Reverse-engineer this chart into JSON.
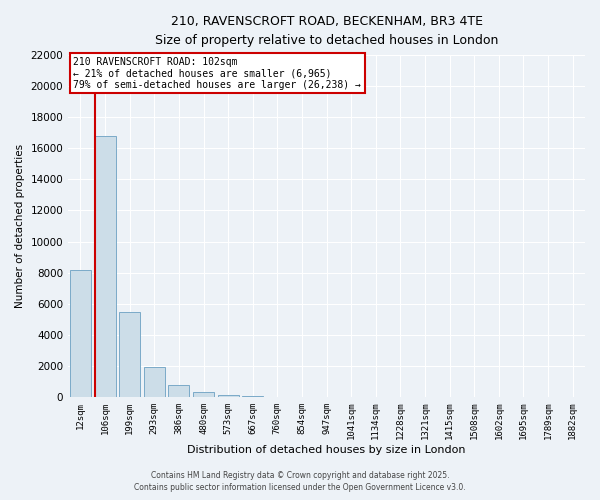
{
  "title": "210, RAVENSCROFT ROAD, BECKENHAM, BR3 4TE",
  "subtitle": "Size of property relative to detached houses in London",
  "xlabel": "Distribution of detached houses by size in London",
  "ylabel": "Number of detached properties",
  "bar_labels": [
    "12sqm",
    "106sqm",
    "199sqm",
    "293sqm",
    "386sqm",
    "480sqm",
    "573sqm",
    "667sqm",
    "760sqm",
    "854sqm",
    "947sqm",
    "1041sqm",
    "1134sqm",
    "1228sqm",
    "1321sqm",
    "1415sqm",
    "1508sqm",
    "1602sqm",
    "1695sqm",
    "1789sqm",
    "1882sqm"
  ],
  "bar_values": [
    8150,
    16800,
    5450,
    1900,
    750,
    350,
    150,
    50,
    0,
    0,
    0,
    0,
    0,
    0,
    0,
    0,
    0,
    0,
    0,
    0,
    0
  ],
  "bar_color": "#ccdde8",
  "bar_edge_color": "#7aaac8",
  "ylim": [
    0,
    22000
  ],
  "yticks": [
    0,
    2000,
    4000,
    6000,
    8000,
    10000,
    12000,
    14000,
    16000,
    18000,
    20000,
    22000
  ],
  "vline_color": "#cc0000",
  "vline_pos": 0.575,
  "annotation_text_line1": "210 RAVENSCROFT ROAD: 102sqm",
  "annotation_text_line2": "← 21% of detached houses are smaller (6,965)",
  "annotation_text_line3": "79% of semi-detached houses are larger (26,238) →",
  "background_color": "#edf2f7",
  "grid_color": "#ffffff",
  "footer1": "Contains HM Land Registry data © Crown copyright and database right 2025.",
  "footer2": "Contains public sector information licensed under the Open Government Licence v3.0."
}
